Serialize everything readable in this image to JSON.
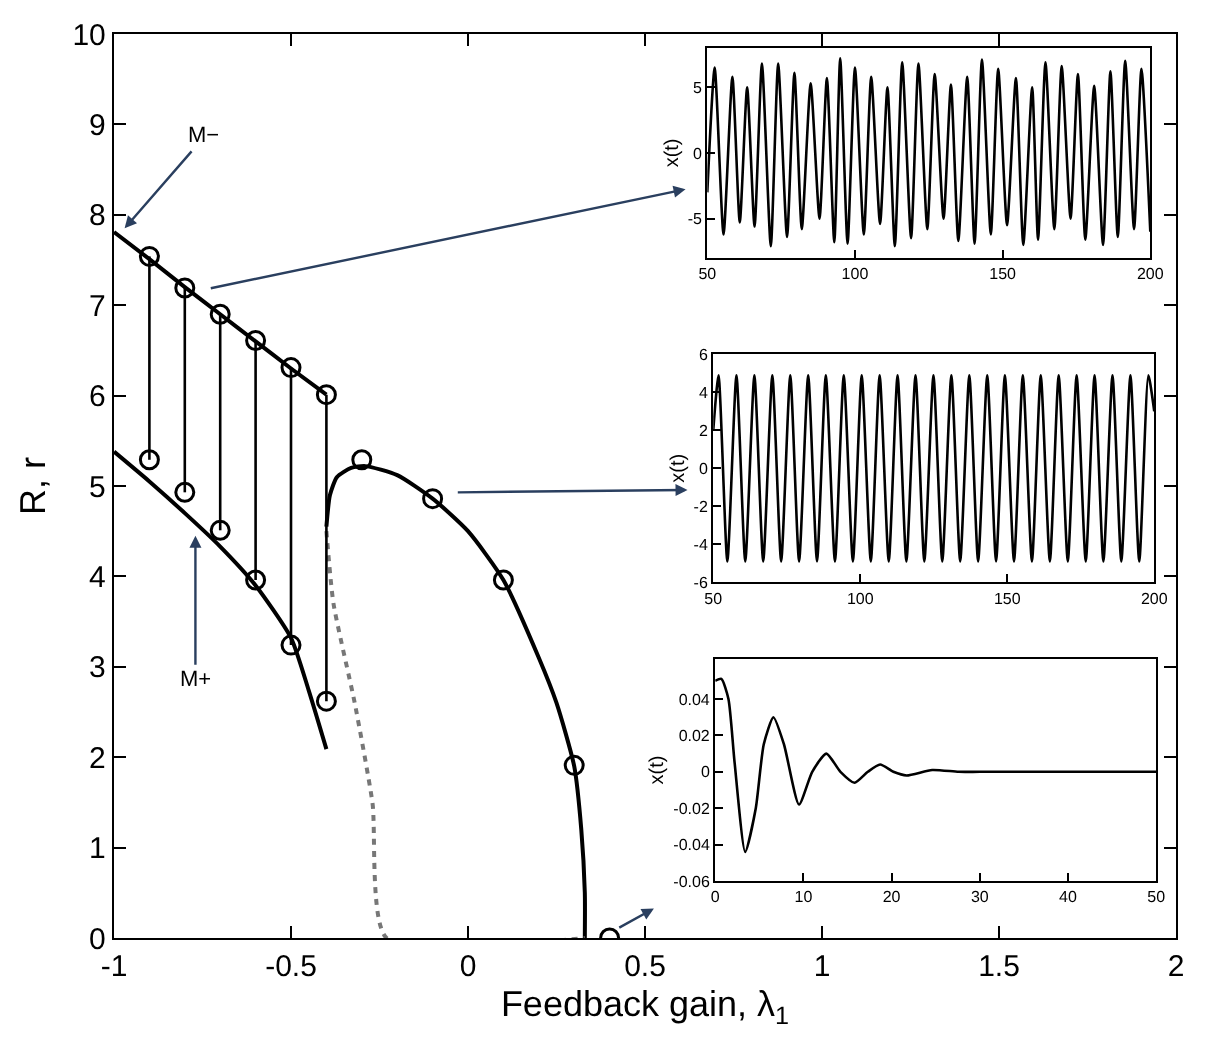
{
  "chart_data": [
    {
      "type": "line",
      "xlabel": "Feedback gain, λ$_{1}$",
      "ylabel": "R, r",
      "xlim": [
        -1,
        2
      ],
      "ylim": [
        0,
        10
      ],
      "xticks": [
        -1,
        -0.5,
        0,
        0.5,
        1,
        1.5,
        2
      ],
      "yticks": [
        0,
        1,
        2,
        3,
        4,
        5,
        6,
        7,
        8,
        9,
        10
      ],
      "grid": false,
      "annotations": [
        {
          "text": "M−",
          "x": -0.97,
          "y": 7.85
        },
        {
          "text": "M+",
          "x": -0.77,
          "y": 4.45
        }
      ],
      "series": [
        {
          "type": "line",
          "marker": "none",
          "color": "#000000",
          "x": [
            -1,
            -0.9,
            -0.8,
            -0.7,
            -0.6,
            -0.5,
            -0.4
          ],
          "values": [
            7.81,
            7.51,
            7.2,
            6.9,
            6.6,
            6.3,
            6.01
          ]
        },
        {
          "type": "line",
          "marker": "none",
          "color": "#000000",
          "x": [
            -1,
            -0.9,
            -0.8,
            -0.7,
            -0.6,
            -0.5,
            -0.45,
            -0.4
          ],
          "values": [
            5.38,
            5.05,
            4.7,
            4.33,
            3.9,
            3.32,
            2.74,
            2.09
          ]
        },
        {
          "type": "line",
          "marker": "none",
          "color": "#000000",
          "x": [
            -0.4,
            -0.39,
            -0.37,
            -0.33,
            -0.29,
            -0.2,
            -0.1,
            0,
            0.1,
            0.2,
            0.25,
            0.3,
            0.32,
            0.33,
            0.33
          ],
          "values": [
            4.55,
            4.9,
            5.1,
            5.2,
            5.22,
            5.12,
            4.86,
            4.5,
            3.96,
            3.1,
            2.6,
            1.9,
            1.2,
            0.5,
            0
          ]
        },
        {
          "type": "line",
          "marker": "none",
          "line_style": "dotted",
          "color": "#777777",
          "x": [
            -0.4,
            -0.38,
            -0.32,
            -0.27,
            -0.23,
            0.33
          ],
          "values": [
            4.5,
            3.7,
            2.6,
            1.5,
            0,
            0
          ]
        },
        {
          "type": "scatter",
          "marker": "circle",
          "color": "#000000",
          "x": [
            -0.9,
            -0.8,
            -0.7,
            -0.6,
            -0.5,
            -0.4
          ],
          "values": [
            7.54,
            7.19,
            6.9,
            6.61,
            6.31,
            6.01
          ],
          "errors": [
            [
              5.29,
              7.54
            ],
            [
              4.93,
              7.19
            ],
            [
              4.51,
              6.9
            ],
            [
              3.96,
              6.61
            ],
            [
              3.24,
              6.31
            ],
            [
              2.62,
              6.01
            ]
          ]
        },
        {
          "type": "scatter",
          "marker": "circle",
          "color": "#000000",
          "x": [
            -0.9,
            -0.8,
            -0.7,
            -0.6,
            -0.5,
            -0.4
          ],
          "values": [
            5.29,
            4.93,
            4.51,
            3.96,
            3.24,
            2.62
          ]
        },
        {
          "type": "scatter",
          "marker": "circle",
          "color": "#000000",
          "x": [
            -0.3,
            -0.1,
            0.1,
            0.3,
            0.4
          ],
          "values": [
            5.29,
            4.86,
            3.96,
            1.91,
            0
          ]
        }
      ]
    },
    {
      "type": "line",
      "ylabel": "x(t)",
      "xlim": [
        50,
        200
      ],
      "ylim": [
        -8,
        8
      ],
      "xticks": [
        50,
        100,
        150,
        200
      ],
      "yticks": [
        -5,
        0,
        5
      ],
      "grid": false,
      "series": [
        {
          "color": "#000000",
          "x": [
            50,
            52.5,
            55.5,
            58.5,
            61,
            63.5,
            66,
            68.5,
            71.5,
            74,
            77,
            79.5,
            82,
            85,
            88,
            90.5,
            93,
            95,
            97.5,
            100,
            103,
            105.5,
            108.5,
            111,
            113.5,
            116,
            119,
            121.5,
            124.5,
            127,
            130,
            132.5,
            135,
            138,
            140.5,
            143,
            146,
            148.5,
            151.5,
            154.5,
            157,
            160,
            162,
            164.5,
            167.5,
            170,
            173,
            175.5,
            178,
            181,
            184,
            186.5,
            189,
            191.5,
            194.5,
            197,
            200
          ],
          "values": [
            -3,
            6.5,
            -6.2,
            5.8,
            -5.3,
            5,
            -5.6,
            6.8,
            -7.1,
            6.8,
            -6.4,
            6.1,
            -5.8,
            5.3,
            -5,
            5.7,
            -6.8,
            7.2,
            -6.9,
            6.5,
            -6.2,
            5.8,
            -5.4,
            5,
            -7.1,
            6.9,
            -6.5,
            6.8,
            -5.8,
            6,
            -5,
            5.2,
            -6.7,
            5.8,
            -6.9,
            7.1,
            -6.2,
            6.4,
            -5.5,
            5.7,
            -7,
            5,
            -6.6,
            6.9,
            -5.8,
            6.6,
            -5,
            6,
            -6.6,
            5.1,
            -7,
            6.2,
            -6.4,
            7,
            -5.8,
            6.4,
            -6
          ]
        }
      ]
    },
    {
      "type": "line",
      "ylabel": "x(t)",
      "xlim": [
        50,
        200
      ],
      "ylim": [
        -6,
        6
      ],
      "xticks": [
        50,
        100,
        150,
        200
      ],
      "yticks": [
        -6,
        -4,
        -2,
        0,
        2,
        4,
        6
      ],
      "grid": false,
      "series": [
        {
          "color": "#000000",
          "x": [
            50,
            51.8,
            54.8,
            57.9,
            60.9,
            64,
            67,
            70.1,
            73.1,
            76.2,
            79.2,
            82.3,
            85.3,
            88.3,
            91.4,
            94.4,
            97.5,
            100.5,
            103.6,
            106.6,
            109.7,
            112.7,
            115.7,
            118.8,
            121.8,
            124.9,
            127.9,
            131,
            134,
            137.1,
            140.1,
            143.2,
            146.2,
            149.2,
            152.3,
            155.3,
            158.4,
            161.4,
            164.5,
            167.5,
            170.6,
            173.6,
            176.7,
            179.7,
            182.7,
            185.8,
            188.8,
            191.9,
            194.9,
            198,
            200
          ],
          "values": [
            2,
            4.9,
            -4.9,
            4.9,
            -4.9,
            4.9,
            -4.9,
            4.9,
            -4.9,
            4.9,
            -4.9,
            4.9,
            -4.9,
            4.9,
            -4.9,
            4.9,
            -4.9,
            4.9,
            -4.9,
            4.9,
            -4.9,
            4.9,
            -4.9,
            4.9,
            -4.9,
            4.9,
            -4.9,
            4.9,
            -4.9,
            4.9,
            -4.9,
            4.9,
            -4.9,
            4.9,
            -4.9,
            4.9,
            -4.9,
            4.9,
            -4.9,
            4.9,
            -4.9,
            4.9,
            -4.9,
            4.9,
            -4.9,
            4.9,
            -4.9,
            4.9,
            -4.9,
            4.9,
            3
          ]
        }
      ]
    },
    {
      "type": "line",
      "ylabel": "x(t)",
      "xlim": [
        0,
        50
      ],
      "ylim": [
        -0.06,
        0.062
      ],
      "xticks": [
        0,
        10,
        20,
        30,
        40,
        50
      ],
      "yticks": [
        -0.06,
        -0.04,
        -0.02,
        0,
        0.02,
        0.04
      ],
      "grid": false,
      "series": [
        {
          "color": "#000000",
          "x": [
            0,
            0.7,
            1.5,
            2.2,
            3.4,
            4.6,
            5.5,
            6.6,
            7.8,
            9.5,
            11,
            12.6,
            14.2,
            15.8,
            17.3,
            18.7,
            20.2,
            21.7,
            24.6,
            27.6,
            30,
            50
          ],
          "values": [
            0.05,
            0.051,
            0.04,
            0.005,
            -0.044,
            -0.02,
            0.015,
            0.03,
            0.015,
            -0.018,
            0,
            0.01,
            0,
            -0.006,
            0,
            0.004,
            0,
            -0.002,
            0.001,
            0,
            0,
            0
          ]
        }
      ]
    }
  ]
}
